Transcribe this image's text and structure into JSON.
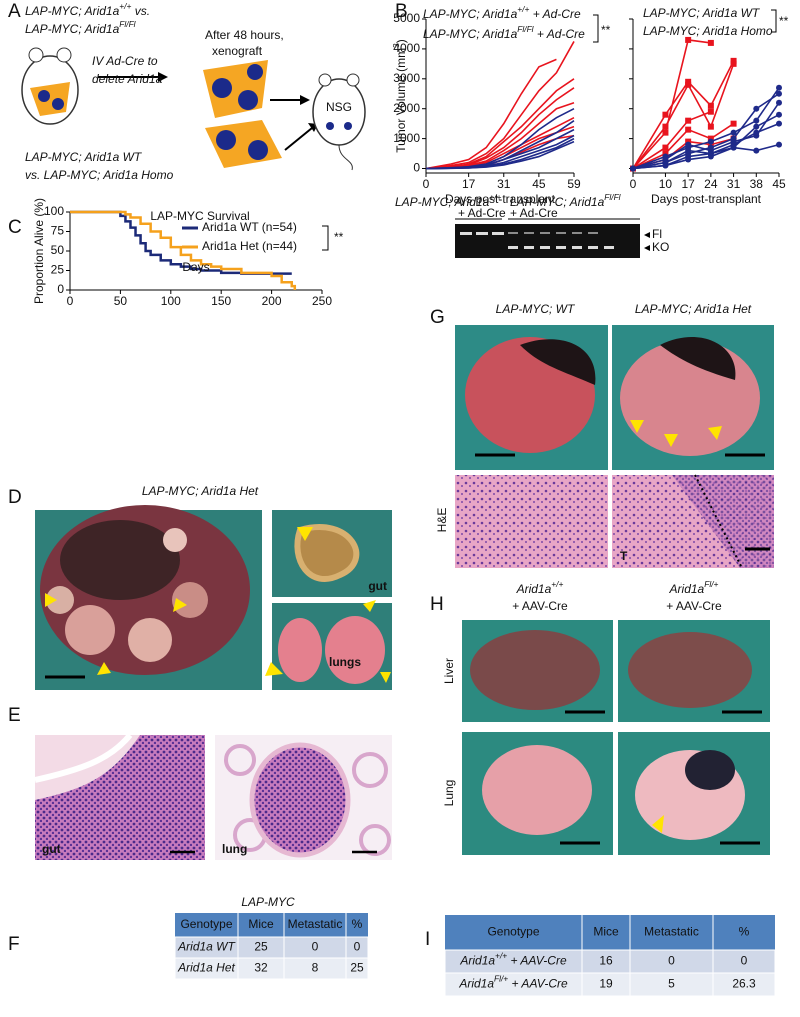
{
  "panel_labels": [
    "A",
    "B",
    "C",
    "D",
    "E",
    "F",
    "G",
    "H",
    "I"
  ],
  "panel_a": {
    "group1": [
      "LAP-MYC; Arid1a",
      "+/+",
      " vs."
    ],
    "group2": [
      "LAP-MYC; Arid1a",
      "Fl/Fl"
    ],
    "injection_1": "IV Ad-Cre to",
    "injection_2": "delete Arid1a",
    "wait_1": "After 48 hours,",
    "wait_2": "xenograft",
    "host": "NSG",
    "group3_1": "LAP-MYC; Arid1a WT",
    "group3_2": "vs. LAP-MYC; Arid1a Homo"
  },
  "chart_data": [
    {
      "type": "line",
      "ylabel": [
        "Tumor Volume (mm",
        "3",
        ")"
      ],
      "xlabel": "Days post-transplant",
      "legend": [
        {
          "label": [
            "LAP-MYC; Arid1a",
            "+/+",
            " + Ad-Cre"
          ],
          "color": "#1f2a8a"
        },
        {
          "label": [
            "LAP-MYC; Arid1a",
            "Fl/Fl",
            " + Ad-Cre"
          ],
          "color": "#e8141e"
        }
      ],
      "significance": "**",
      "x": [
        0,
        10,
        17,
        24,
        31,
        38,
        45,
        52,
        59
      ],
      "xlim": [
        0,
        59
      ],
      "xticks": [
        0,
        17,
        31,
        45,
        59
      ],
      "ylim": [
        -150,
        5000
      ],
      "yticks": [
        0,
        1000,
        2000,
        3000,
        4000,
        5000
      ],
      "series": [
        {
          "color": "#e8141e",
          "values": [
            0,
            150,
            300,
            700,
            1500,
            2500,
            3400,
            3650,
            null
          ]
        },
        {
          "color": "#e8141e",
          "values": [
            0,
            100,
            200,
            500,
            1000,
            1800,
            2600,
            3200,
            4250
          ]
        },
        {
          "color": "#e8141e",
          "values": [
            0,
            50,
            150,
            400,
            900,
            1400,
            2000,
            2600,
            3000
          ]
        },
        {
          "color": "#e8141e",
          "values": [
            0,
            80,
            120,
            350,
            700,
            1200,
            1800,
            2300,
            2700
          ]
        },
        {
          "color": "#e8141e",
          "values": [
            0,
            60,
            100,
            250,
            600,
            1000,
            1500,
            2000,
            2200
          ]
        },
        {
          "color": "#e8141e",
          "values": [
            0,
            30,
            80,
            200,
            500,
            800,
            1100,
            1400,
            1700
          ]
        },
        {
          "color": "#e8141e",
          "values": [
            0,
            40,
            60,
            150,
            400,
            700,
            1000,
            1200,
            1400
          ]
        },
        {
          "color": "#e8141e",
          "values": [
            0,
            20,
            50,
            100,
            300,
            550,
            800,
            1000,
            1100
          ]
        },
        {
          "color": "#1f2a8a",
          "values": [
            0,
            20,
            60,
            150,
            400,
            800,
            1300,
            1700,
            2000
          ]
        },
        {
          "color": "#1f2a8a",
          "values": [
            0,
            10,
            40,
            100,
            300,
            600,
            900,
            1200,
            1600
          ]
        },
        {
          "color": "#1f2a8a",
          "values": [
            0,
            30,
            50,
            120,
            300,
            500,
            700,
            1000,
            1300
          ]
        },
        {
          "color": "#1f2a8a",
          "values": [
            0,
            10,
            30,
            80,
            200,
            400,
            600,
            800,
            1100
          ]
        },
        {
          "color": "#1f2a8a",
          "values": [
            0,
            5,
            20,
            60,
            150,
            300,
            500,
            700,
            1000
          ]
        },
        {
          "color": "#1f2a8a",
          "values": [
            0,
            10,
            20,
            50,
            120,
            250,
            400,
            650,
            900
          ]
        }
      ]
    },
    {
      "type": "line",
      "xlabel": "Days post-transplant",
      "legend": [
        {
          "label": [
            "LAP-MYC; Arid1a WT"
          ],
          "color": "#1f2a8a"
        },
        {
          "label": [
            "LAP-MYC; Arid1a Homo"
          ],
          "color": "#e8141e"
        }
      ],
      "significance": "**",
      "ytick_labels": false,
      "x": [
        0,
        10,
        17,
        24,
        31,
        38,
        45
      ],
      "xlim": [
        0,
        45
      ],
      "xticks": [
        0,
        10,
        17,
        24,
        31,
        38,
        45
      ],
      "ylim": [
        -150,
        5000
      ],
      "yticks": [
        0,
        1000,
        2000,
        3000,
        4000,
        5000
      ],
      "series": [
        {
          "color": "#e8141e",
          "marker": "square",
          "values": [
            0,
            1200,
            4300,
            4200,
            null,
            null,
            null
          ]
        },
        {
          "color": "#e8141e",
          "marker": "square",
          "values": [
            0,
            1800,
            2900,
            2100,
            3600,
            null,
            null
          ]
        },
        {
          "color": "#e8141e",
          "marker": "square",
          "values": [
            0,
            1400,
            2800,
            1400,
            3500,
            null,
            null
          ]
        },
        {
          "color": "#e8141e",
          "marker": "square",
          "values": [
            0,
            700,
            1600,
            1900,
            null,
            null,
            null
          ]
        },
        {
          "color": "#e8141e",
          "marker": "square",
          "values": [
            0,
            500,
            1300,
            1000,
            1500,
            null,
            null
          ]
        },
        {
          "color": "#e8141e",
          "marker": "square",
          "values": [
            0,
            300,
            900,
            800,
            1000,
            null,
            null
          ]
        },
        {
          "color": "#1f2a8a",
          "marker": "circle",
          "values": [
            0,
            400,
            700,
            900,
            1200,
            1600,
            2700
          ]
        },
        {
          "color": "#1f2a8a",
          "marker": "circle",
          "values": [
            0,
            200,
            500,
            700,
            1000,
            2000,
            2500
          ]
        },
        {
          "color": "#1f2a8a",
          "marker": "circle",
          "values": [
            0,
            300,
            800,
            600,
            900,
            1100,
            2200
          ]
        },
        {
          "color": "#1f2a8a",
          "marker": "circle",
          "values": [
            0,
            100,
            400,
            500,
            700,
            1400,
            1800
          ]
        },
        {
          "color": "#1f2a8a",
          "marker": "circle",
          "values": [
            0,
            200,
            600,
            500,
            800,
            1200,
            1500
          ]
        },
        {
          "color": "#1f2a8a",
          "marker": "circle",
          "values": [
            0,
            100,
            300,
            400,
            700,
            600,
            800
          ]
        }
      ]
    },
    {
      "type": "line",
      "step": true,
      "title": "LAP-MYC Survival",
      "ylabel": "Proportion Alive (%)",
      "xlabel": "Days",
      "significance": "**",
      "xlim": [
        0,
        250
      ],
      "xticks": [
        0,
        50,
        100,
        150,
        200,
        250
      ],
      "ylim": [
        0,
        100
      ],
      "yticks": [
        0,
        25,
        50,
        75,
        100
      ],
      "series": [
        {
          "name": "Arid1a WT (n=54)",
          "color": "#1c2a78",
          "x": [
            0,
            45,
            50,
            55,
            60,
            65,
            70,
            75,
            80,
            90,
            100,
            110,
            120,
            130,
            150,
            170,
            200,
            220
          ],
          "values": [
            100,
            100,
            95,
            88,
            80,
            70,
            60,
            50,
            45,
            38,
            33,
            30,
            27,
            25,
            22,
            21,
            21,
            21
          ]
        },
        {
          "name": "Arid1a Het (n=44)",
          "color": "#f5a11c",
          "x": [
            0,
            50,
            55,
            60,
            70,
            80,
            90,
            100,
            110,
            120,
            130,
            140,
            150,
            170,
            200,
            210,
            220,
            223
          ],
          "values": [
            100,
            100,
            97,
            93,
            85,
            75,
            67,
            55,
            45,
            38,
            33,
            30,
            27,
            22,
            18,
            10,
            5,
            0
          ]
        }
      ]
    }
  ],
  "gel": {
    "groups": [
      {
        "line1": [
          "LAP-MYC; Arid1a",
          "+/+"
        ],
        "line2": "+ Ad-Cre"
      },
      {
        "line1": [
          "LAP-MYC; Arid1a",
          "Fl/Fl"
        ],
        "line2": "+ Ad-Cre"
      }
    ],
    "bands": [
      "Fl",
      "KO"
    ]
  },
  "panel_d": {
    "title": "LAP-MYC; Arid1a Het",
    "labels": [
      "gut",
      "lungs"
    ]
  },
  "panel_e": {
    "labels": [
      "gut",
      "lung"
    ]
  },
  "panel_f": {
    "title": "LAP-MYC",
    "columns": [
      "Genotype",
      "Mice",
      "Metastatic",
      "%"
    ],
    "rows": [
      [
        "Arid1a WT",
        25,
        0,
        0
      ],
      [
        "Arid1a Het",
        32,
        8,
        25
      ]
    ]
  },
  "panel_g": {
    "columns": [
      "LAP-MYC; WT",
      "LAP-MYC; Arid1a Het"
    ],
    "stain": "H&E",
    "region": "T"
  },
  "panel_h": {
    "columns": [
      {
        "line1": [
          "Arid1a",
          "+/+"
        ],
        "line2": "+ AAV-Cre"
      },
      {
        "line1": [
          "Arid1a",
          "Fl/+"
        ],
        "line2": "+ AAV-Cre"
      }
    ],
    "rows": [
      "Liver",
      "Lung"
    ]
  },
  "panel_i": {
    "columns": [
      "Genotype",
      "Mice",
      "Metastatic",
      "%"
    ],
    "rows": [
      [
        [
          "Arid1a",
          "+/+",
          " + AAV-Cre"
        ],
        16,
        0,
        0
      ],
      [
        [
          "Arid1a",
          "Fl/+",
          " + AAV-Cre"
        ],
        19,
        5,
        26.3
      ]
    ]
  }
}
